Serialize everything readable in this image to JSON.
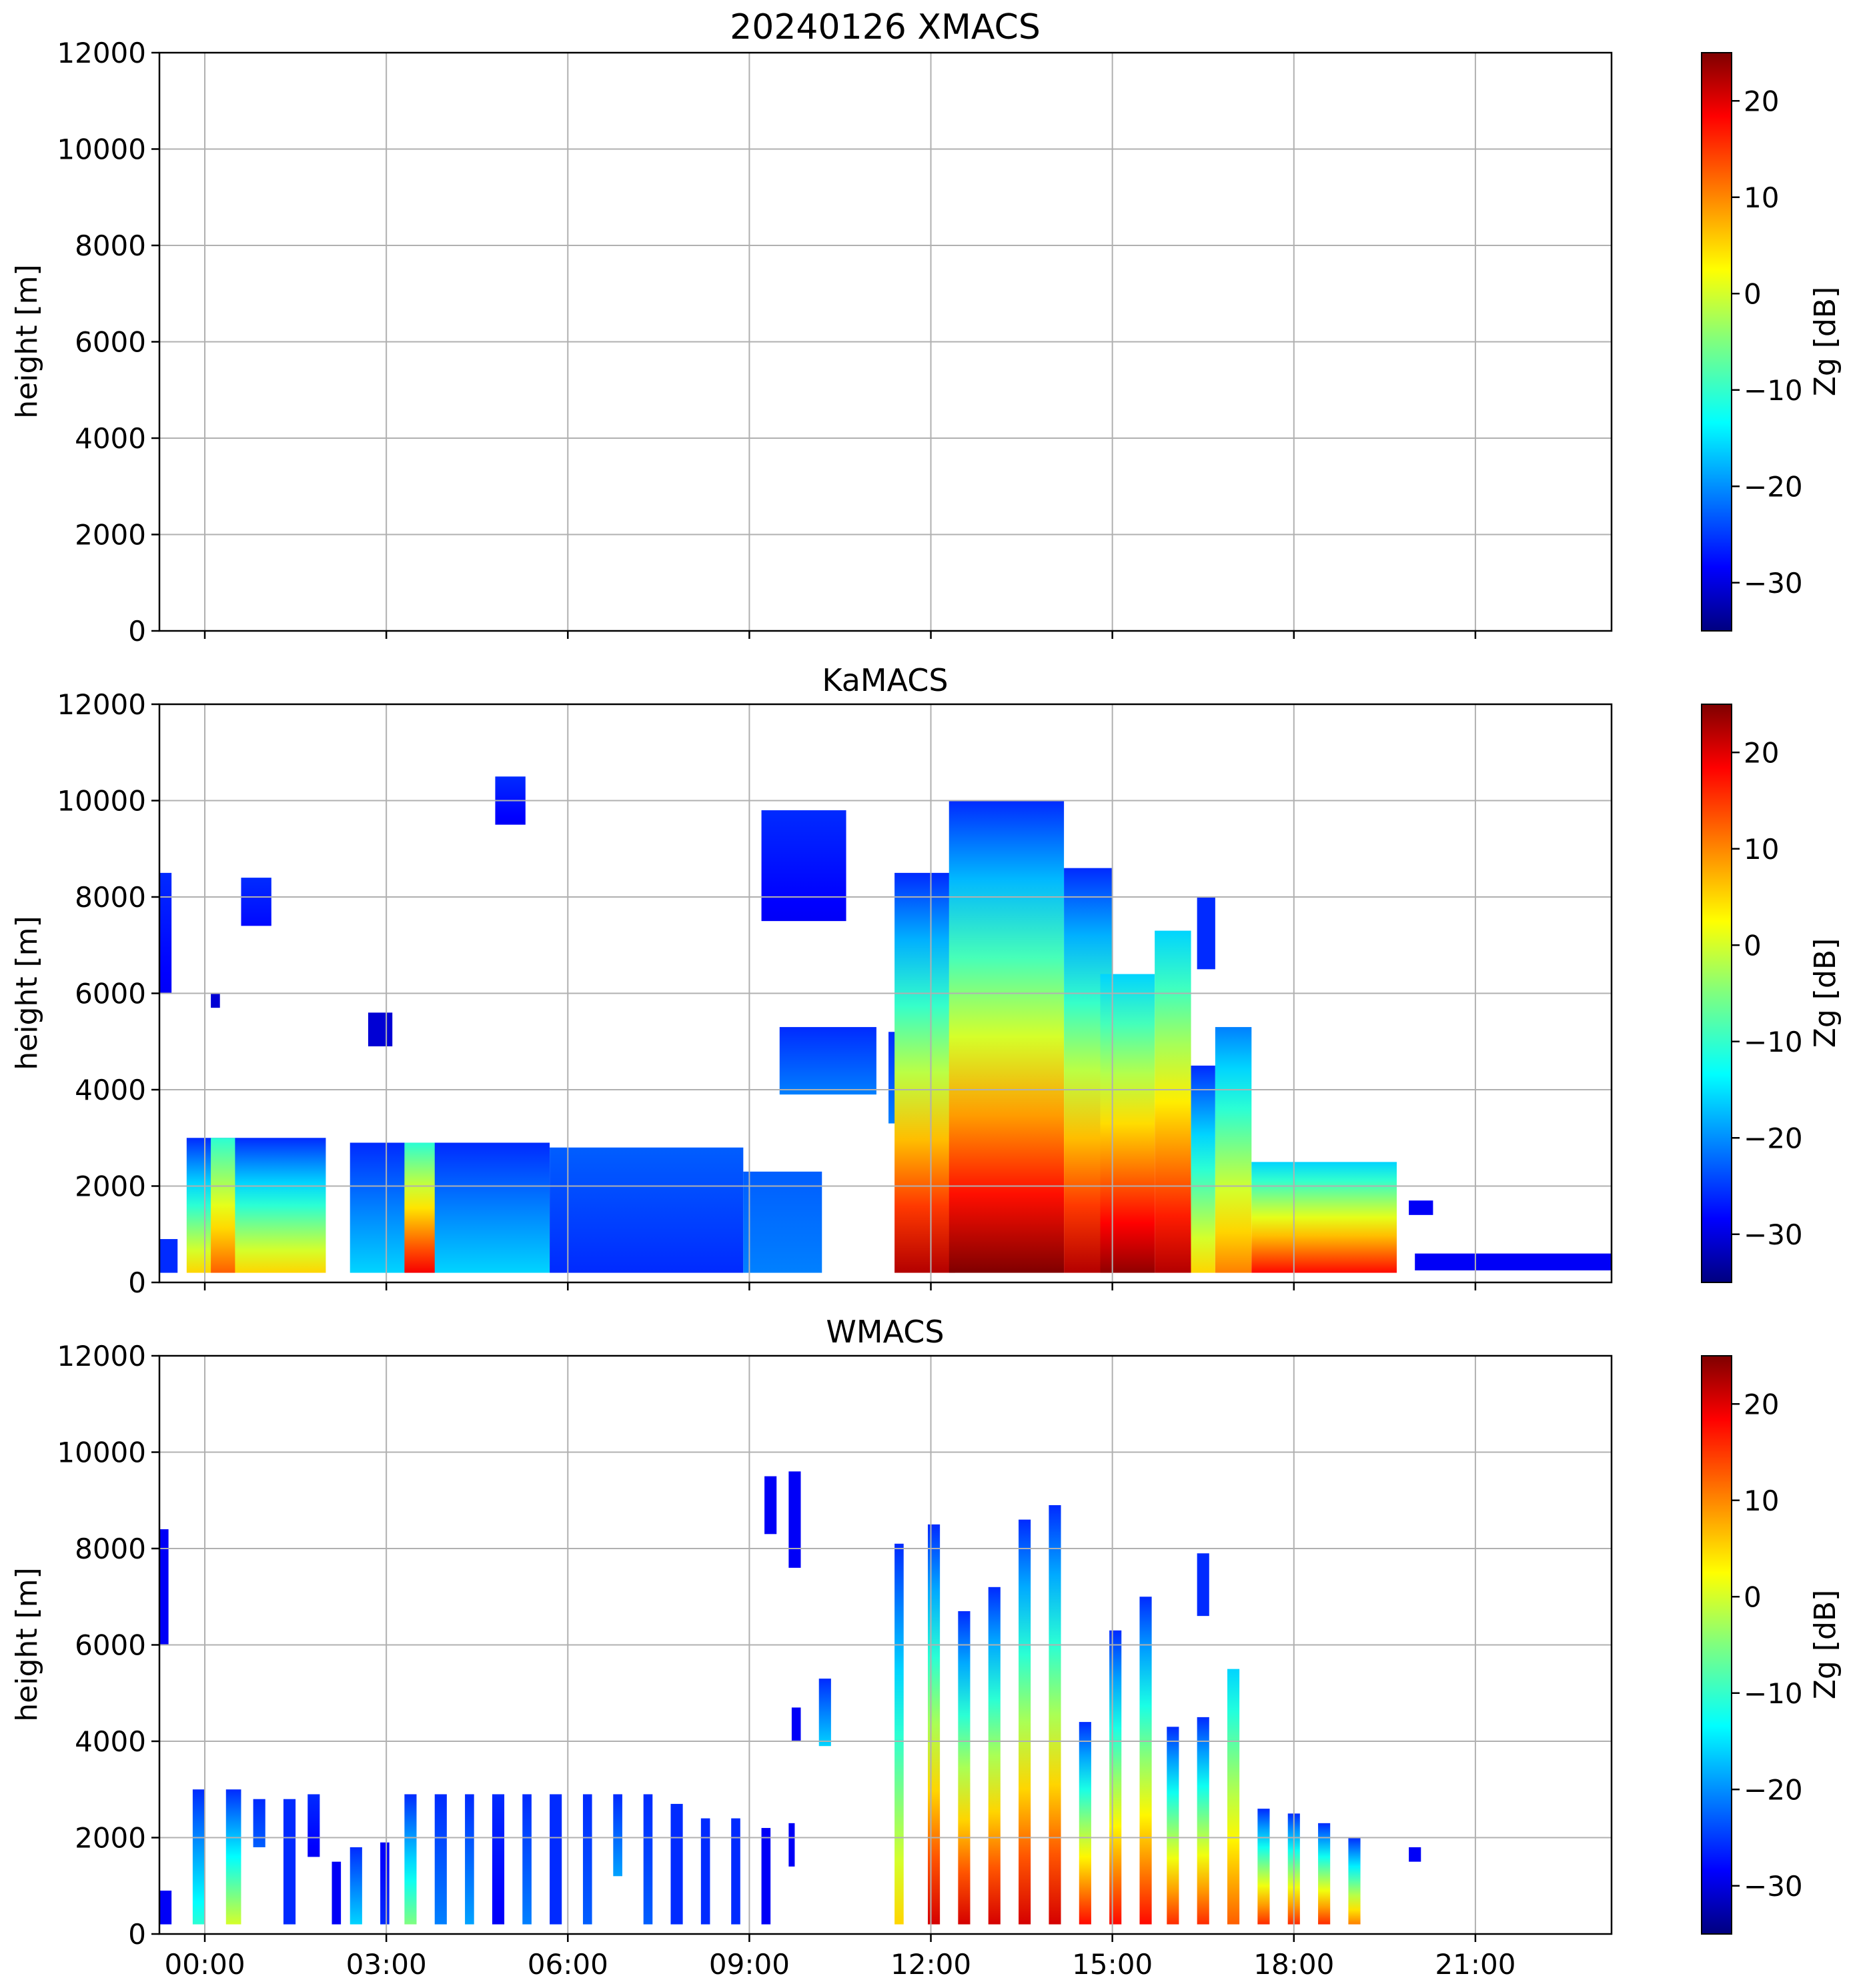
{
  "chart_data": [
    {
      "type": "heatmap",
      "title": "20240126 XMACS",
      "ylabel": "height [m]",
      "ylim": [
        0,
        12000
      ],
      "yticks": [
        "0",
        "2000",
        "4000",
        "6000",
        "8000",
        "10000",
        "12000"
      ],
      "xlim_hours": [
        -0.75,
        23.25
      ],
      "grid": true,
      "colorbar": {
        "label": "Zg [dB]",
        "range": [
          -35,
          25
        ],
        "ticks": [
          "−30",
          "−20",
          "−10",
          "0",
          "10",
          "20"
        ],
        "colormap": "jet"
      },
      "echoes": []
    },
    {
      "type": "heatmap",
      "title": "KaMACS",
      "ylabel": "height [m]",
      "ylim": [
        0,
        12000
      ],
      "yticks": [
        "0",
        "2000",
        "4000",
        "6000",
        "8000",
        "10000",
        "12000"
      ],
      "xlim_hours": [
        -0.75,
        23.25
      ],
      "grid": true,
      "colorbar": {
        "label": "Zg [dB]",
        "range": [
          -35,
          25
        ],
        "ticks": [
          "−30",
          "−20",
          "−10",
          "0",
          "10",
          "20"
        ],
        "colormap": "jet"
      },
      "echoes": [
        {
          "t0": -0.75,
          "t1": -0.55,
          "h0": 6000,
          "h1": 8500,
          "zb": -28,
          "zt": -25
        },
        {
          "t0": -0.75,
          "t1": -0.45,
          "h0": 200,
          "h1": 900,
          "zb": -25,
          "zt": -25
        },
        {
          "t0": 0.6,
          "t1": 1.1,
          "h0": 7400,
          "h1": 8400,
          "zb": -27,
          "zt": -25
        },
        {
          "t0": 0.1,
          "t1": 0.25,
          "h0": 5700,
          "h1": 6000,
          "zb": -30,
          "zt": -30
        },
        {
          "t0": -0.3,
          "t1": 2.0,
          "h0": 200,
          "h1": 3000,
          "zb": 5,
          "zt": -25
        },
        {
          "t0": 0.1,
          "t1": 0.5,
          "h0": 200,
          "h1": 3000,
          "zb": 12,
          "zt": -10
        },
        {
          "t0": 2.4,
          "t1": 5.7,
          "h0": 200,
          "h1": 2900,
          "zb": -15,
          "zt": -25
        },
        {
          "t0": 3.3,
          "t1": 3.8,
          "h0": 200,
          "h1": 2900,
          "zb": 18,
          "zt": -10
        },
        {
          "t0": 5.7,
          "t1": 8.9,
          "h0": 200,
          "h1": 2800,
          "zb": -25,
          "zt": -22
        },
        {
          "t0": 8.9,
          "t1": 10.2,
          "h0": 200,
          "h1": 2300,
          "zb": -20,
          "zt": -22
        },
        {
          "t0": 9.2,
          "t1": 10.6,
          "h0": 7500,
          "h1": 9800,
          "zb": -28,
          "zt": -25
        },
        {
          "t0": 4.8,
          "t1": 5.3,
          "h0": 9500,
          "h1": 10500,
          "zb": -28,
          "zt": -25
        },
        {
          "t0": 9.5,
          "t1": 11.1,
          "h0": 3900,
          "h1": 5300,
          "zb": -20,
          "zt": -25
        },
        {
          "t0": 2.7,
          "t1": 3.1,
          "h0": 4900,
          "h1": 5600,
          "zb": -30,
          "zt": -30
        },
        {
          "t0": 11.3,
          "t1": 12.1,
          "h0": 3300,
          "h1": 5200,
          "zb": -20,
          "zt": -25
        },
        {
          "t0": 11.4,
          "t1": 12.4,
          "h0": 200,
          "h1": 8500,
          "zb": 22,
          "zt": -25
        },
        {
          "t0": 12.3,
          "t1": 14.2,
          "h0": 200,
          "h1": 10000,
          "zb": 25,
          "zt": -25
        },
        {
          "t0": 14.2,
          "t1": 15.0,
          "h0": 200,
          "h1": 8600,
          "zb": 22,
          "zt": -25
        },
        {
          "t0": 14.8,
          "t1": 15.7,
          "h0": 200,
          "h1": 6400,
          "zb": 24,
          "zt": -15
        },
        {
          "t0": 15.7,
          "t1": 16.3,
          "h0": 200,
          "h1": 7300,
          "zb": 22,
          "zt": -15
        },
        {
          "t0": 16.3,
          "t1": 16.7,
          "h0": 200,
          "h1": 4500,
          "zb": 5,
          "zt": -25
        },
        {
          "t0": 16.7,
          "t1": 17.3,
          "h0": 200,
          "h1": 5300,
          "zb": 10,
          "zt": -20
        },
        {
          "t0": 16.4,
          "t1": 16.7,
          "h0": 6500,
          "h1": 8000,
          "zb": -25,
          "zt": -25
        },
        {
          "t0": 17.3,
          "t1": 19.7,
          "h0": 200,
          "h1": 2500,
          "zb": 17,
          "zt": -15
        },
        {
          "t0": 19.9,
          "t1": 20.3,
          "h0": 1400,
          "h1": 1700,
          "zb": -28,
          "zt": -28
        },
        {
          "t0": 20.0,
          "t1": 23.25,
          "h0": 250,
          "h1": 600,
          "zb": -28,
          "zt": -28
        }
      ]
    },
    {
      "type": "heatmap",
      "title": "WMACS",
      "ylabel": "height [m]",
      "ylim": [
        0,
        12000
      ],
      "yticks": [
        "0",
        "2000",
        "4000",
        "6000",
        "8000",
        "10000",
        "12000"
      ],
      "xticks": [
        "00:00",
        "03:00",
        "06:00",
        "09:00",
        "12:00",
        "15:00",
        "18:00",
        "21:00"
      ],
      "xtick_hours": [
        0,
        3,
        6,
        9,
        12,
        15,
        18,
        21
      ],
      "xlim_hours": [
        -0.75,
        23.25
      ],
      "grid": true,
      "colorbar": {
        "label": "Zg [dB]",
        "range": [
          -35,
          25
        ],
        "ticks": [
          "−30",
          "−20",
          "−10",
          "0",
          "10",
          "20"
        ],
        "colormap": "jet"
      },
      "echoes": [
        {
          "t0": -0.75,
          "t1": -0.6,
          "h0": 6000,
          "h1": 8400,
          "zb": -28,
          "zt": -28
        },
        {
          "t0": -0.75,
          "t1": -0.55,
          "h0": 200,
          "h1": 900,
          "zb": -28,
          "zt": -28
        },
        {
          "t0": -0.2,
          "t1": 0.0,
          "h0": 200,
          "h1": 3000,
          "zb": -10,
          "zt": -25
        },
        {
          "t0": 0.35,
          "t1": 0.6,
          "h0": 200,
          "h1": 3000,
          "zb": 0,
          "zt": -25
        },
        {
          "t0": 0.8,
          "t1": 1.0,
          "h0": 1800,
          "h1": 2800,
          "zb": -22,
          "zt": -25
        },
        {
          "t0": 1.3,
          "t1": 1.5,
          "h0": 200,
          "h1": 2800,
          "zb": -25,
          "zt": -25
        },
        {
          "t0": 1.7,
          "t1": 1.9,
          "h0": 1600,
          "h1": 2900,
          "zb": -28,
          "zt": -25
        },
        {
          "t0": 2.1,
          "t1": 2.25,
          "h0": 200,
          "h1": 1500,
          "zb": -28,
          "zt": -28
        },
        {
          "t0": 2.4,
          "t1": 2.6,
          "h0": 200,
          "h1": 1800,
          "zb": -15,
          "zt": -25
        },
        {
          "t0": 2.9,
          "t1": 3.05,
          "h0": 200,
          "h1": 1900,
          "zb": -25,
          "zt": -28
        },
        {
          "t0": 3.3,
          "t1": 3.5,
          "h0": 200,
          "h1": 2900,
          "zb": -5,
          "zt": -25
        },
        {
          "t0": 3.8,
          "t1": 4.0,
          "h0": 200,
          "h1": 2900,
          "zb": -20,
          "zt": -25
        },
        {
          "t0": 4.3,
          "t1": 4.45,
          "h0": 200,
          "h1": 2900,
          "zb": -18,
          "zt": -25
        },
        {
          "t0": 4.75,
          "t1": 4.95,
          "h0": 200,
          "h1": 2900,
          "zb": -28,
          "zt": -25
        },
        {
          "t0": 5.25,
          "t1": 5.4,
          "h0": 200,
          "h1": 2900,
          "zb": -20,
          "zt": -25
        },
        {
          "t0": 5.7,
          "t1": 5.9,
          "h0": 200,
          "h1": 2900,
          "zb": -25,
          "zt": -25
        },
        {
          "t0": 6.25,
          "t1": 6.4,
          "h0": 200,
          "h1": 2900,
          "zb": -22,
          "zt": -25
        },
        {
          "t0": 6.75,
          "t1": 6.9,
          "h0": 1200,
          "h1": 2900,
          "zb": -18,
          "zt": -25
        },
        {
          "t0": 7.25,
          "t1": 7.4,
          "h0": 200,
          "h1": 2900,
          "zb": -22,
          "zt": -25
        },
        {
          "t0": 7.7,
          "t1": 7.9,
          "h0": 200,
          "h1": 2700,
          "zb": -25,
          "zt": -25
        },
        {
          "t0": 8.2,
          "t1": 8.35,
          "h0": 200,
          "h1": 2400,
          "zb": -25,
          "zt": -25
        },
        {
          "t0": 8.7,
          "t1": 8.85,
          "h0": 200,
          "h1": 2400,
          "zb": -25,
          "zt": -25
        },
        {
          "t0": 9.2,
          "t1": 9.35,
          "h0": 200,
          "h1": 2200,
          "zb": -28,
          "zt": -28
        },
        {
          "t0": 9.65,
          "t1": 9.75,
          "h0": 1400,
          "h1": 2300,
          "zb": -28,
          "zt": -28
        },
        {
          "t0": 9.25,
          "t1": 9.45,
          "h0": 8300,
          "h1": 9500,
          "zb": -28,
          "zt": -28
        },
        {
          "t0": 9.65,
          "t1": 9.85,
          "h0": 7600,
          "h1": 9600,
          "zb": -28,
          "zt": -28
        },
        {
          "t0": 9.7,
          "t1": 9.85,
          "h0": 4000,
          "h1": 4700,
          "zb": -28,
          "zt": -28
        },
        {
          "t0": 10.15,
          "t1": 10.35,
          "h0": 3900,
          "h1": 5300,
          "zb": -15,
          "zt": -25
        },
        {
          "t0": 11.4,
          "t1": 11.55,
          "h0": 200,
          "h1": 8100,
          "zb": 5,
          "zt": -25
        },
        {
          "t0": 11.95,
          "t1": 12.15,
          "h0": 200,
          "h1": 8500,
          "zb": 20,
          "zt": -25
        },
        {
          "t0": 12.45,
          "t1": 12.65,
          "h0": 200,
          "h1": 6700,
          "zb": 20,
          "zt": -25
        },
        {
          "t0": 12.95,
          "t1": 13.15,
          "h0": 200,
          "h1": 7200,
          "zb": 20,
          "zt": -25
        },
        {
          "t0": 13.45,
          "t1": 13.65,
          "h0": 200,
          "h1": 8600,
          "zb": 20,
          "zt": -25
        },
        {
          "t0": 13.95,
          "t1": 14.15,
          "h0": 200,
          "h1": 8900,
          "zb": 20,
          "zt": -25
        },
        {
          "t0": 14.45,
          "t1": 14.65,
          "h0": 200,
          "h1": 4400,
          "zb": 17,
          "zt": -25
        },
        {
          "t0": 14.95,
          "t1": 15.15,
          "h0": 200,
          "h1": 6300,
          "zb": 17,
          "zt": -25
        },
        {
          "t0": 15.45,
          "t1": 15.65,
          "h0": 200,
          "h1": 7000,
          "zb": 17,
          "zt": -25
        },
        {
          "t0": 15.9,
          "t1": 16.1,
          "h0": 200,
          "h1": 4300,
          "zb": 15,
          "zt": -25
        },
        {
          "t0": 16.4,
          "t1": 16.6,
          "h0": 200,
          "h1": 4500,
          "zb": 15,
          "zt": -25
        },
        {
          "t0": 16.4,
          "t1": 16.6,
          "h0": 6600,
          "h1": 7900,
          "zb": -25,
          "zt": -25
        },
        {
          "t0": 16.9,
          "t1": 17.1,
          "h0": 200,
          "h1": 5500,
          "zb": 12,
          "zt": -15
        },
        {
          "t0": 17.4,
          "t1": 17.6,
          "h0": 200,
          "h1": 2600,
          "zb": 15,
          "zt": -25
        },
        {
          "t0": 17.9,
          "t1": 18.1,
          "h0": 200,
          "h1": 2500,
          "zb": 15,
          "zt": -25
        },
        {
          "t0": 18.4,
          "t1": 18.6,
          "h0": 200,
          "h1": 2300,
          "zb": 15,
          "zt": -25
        },
        {
          "t0": 18.9,
          "t1": 19.1,
          "h0": 200,
          "h1": 2000,
          "zb": 10,
          "zt": -25
        },
        {
          "t0": 19.9,
          "t1": 20.1,
          "h0": 1500,
          "h1": 1800,
          "zb": -28,
          "zt": -28
        }
      ]
    }
  ]
}
